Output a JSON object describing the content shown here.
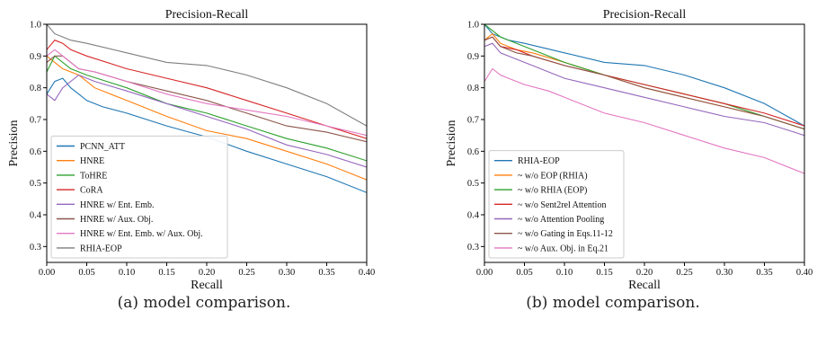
{
  "captions": {
    "a": "(a) model comparison.",
    "b": "(b) model comparison."
  },
  "chart_data": [
    {
      "type": "line",
      "title": "Precision-Recall",
      "xlabel": "Recall",
      "ylabel": "Precision",
      "xlim": [
        0.0,
        0.4
      ],
      "ylim": [
        0.25,
        1.0
      ],
      "xticks": [
        "0.00",
        "0.05",
        "0.10",
        "0.15",
        "0.20",
        "0.25",
        "0.30",
        "0.35",
        "0.40"
      ],
      "yticks": [
        "0.3",
        "0.4",
        "0.5",
        "0.6",
        "0.7",
        "0.8",
        "0.9",
        "1.0"
      ],
      "legend_position": "bottom-left",
      "series": [
        {
          "name": "PCNN_ATT",
          "color": "#1f77b4",
          "x": [
            0.0,
            0.01,
            0.02,
            0.03,
            0.04,
            0.05,
            0.07,
            0.1,
            0.15,
            0.2,
            0.25,
            0.3,
            0.35,
            0.4
          ],
          "y": [
            0.78,
            0.82,
            0.83,
            0.8,
            0.78,
            0.76,
            0.74,
            0.72,
            0.68,
            0.645,
            0.6,
            0.56,
            0.52,
            0.47
          ]
        },
        {
          "name": "HNRE",
          "color": "#ff7f0e",
          "x": [
            0.0,
            0.01,
            0.02,
            0.04,
            0.06,
            0.1,
            0.15,
            0.2,
            0.25,
            0.3,
            0.35,
            0.4
          ],
          "y": [
            0.9,
            0.88,
            0.86,
            0.84,
            0.8,
            0.76,
            0.71,
            0.665,
            0.64,
            0.6,
            0.56,
            0.51
          ]
        },
        {
          "name": "ToHRE",
          "color": "#2ca02c",
          "x": [
            0.0,
            0.01,
            0.02,
            0.03,
            0.05,
            0.1,
            0.15,
            0.2,
            0.25,
            0.3,
            0.35,
            0.4
          ],
          "y": [
            0.85,
            0.9,
            0.88,
            0.86,
            0.84,
            0.8,
            0.75,
            0.72,
            0.68,
            0.64,
            0.61,
            0.57
          ]
        },
        {
          "name": "CoRA",
          "color": "#d62728",
          "x": [
            0.0,
            0.01,
            0.02,
            0.03,
            0.05,
            0.1,
            0.15,
            0.2,
            0.25,
            0.3,
            0.35,
            0.4
          ],
          "y": [
            0.92,
            0.95,
            0.94,
            0.92,
            0.9,
            0.86,
            0.83,
            0.8,
            0.76,
            0.72,
            0.68,
            0.64
          ]
        },
        {
          "name": "HNRE w/ Ent. Emb.",
          "color": "#9467bd",
          "x": [
            0.0,
            0.01,
            0.02,
            0.04,
            0.06,
            0.1,
            0.15,
            0.2,
            0.25,
            0.3,
            0.35,
            0.4
          ],
          "y": [
            0.78,
            0.76,
            0.8,
            0.84,
            0.82,
            0.79,
            0.75,
            0.71,
            0.67,
            0.62,
            0.59,
            0.55
          ]
        },
        {
          "name": "HNRE w/ Aux. Obj.",
          "color": "#8c564b",
          "x": [
            0.0,
            0.01,
            0.02,
            0.04,
            0.06,
            0.1,
            0.15,
            0.2,
            0.25,
            0.3,
            0.35,
            0.4
          ],
          "y": [
            0.88,
            0.9,
            0.9,
            0.86,
            0.85,
            0.82,
            0.79,
            0.76,
            0.72,
            0.68,
            0.66,
            0.63
          ]
        },
        {
          "name": "HNRE w/ Ent. Emb. w/ Aux. Obj.",
          "color": "#e377c2",
          "x": [
            0.0,
            0.01,
            0.02,
            0.04,
            0.06,
            0.1,
            0.15,
            0.2,
            0.25,
            0.3,
            0.35,
            0.4
          ],
          "y": [
            0.9,
            0.92,
            0.9,
            0.86,
            0.85,
            0.82,
            0.78,
            0.75,
            0.73,
            0.71,
            0.68,
            0.65
          ]
        },
        {
          "name": "RHIA-EOP",
          "color": "#7f7f7f",
          "x": [
            0.0,
            0.01,
            0.02,
            0.03,
            0.05,
            0.1,
            0.15,
            0.2,
            0.25,
            0.3,
            0.35,
            0.4
          ],
          "y": [
            1.0,
            0.97,
            0.96,
            0.95,
            0.94,
            0.91,
            0.88,
            0.87,
            0.84,
            0.8,
            0.75,
            0.68
          ]
        }
      ]
    },
    {
      "type": "line",
      "title": "Precision-Recall",
      "xlabel": "Recall",
      "ylabel": "Precision",
      "xlim": [
        0.0,
        0.4
      ],
      "ylim": [
        0.25,
        1.0
      ],
      "xticks": [
        "0.00",
        "0.05",
        "0.10",
        "0.15",
        "0.20",
        "0.25",
        "0.30",
        "0.35",
        "0.40"
      ],
      "yticks": [
        "0.3",
        "0.4",
        "0.5",
        "0.6",
        "0.7",
        "0.8",
        "0.9",
        "1.0"
      ],
      "legend_position": "bottom-left",
      "series": [
        {
          "name": "RHIA-EOP",
          "color": "#1f77b4",
          "x": [
            0.0,
            0.01,
            0.02,
            0.03,
            0.05,
            0.1,
            0.15,
            0.2,
            0.25,
            0.3,
            0.35,
            0.4
          ],
          "y": [
            1.0,
            0.97,
            0.96,
            0.95,
            0.94,
            0.91,
            0.88,
            0.87,
            0.84,
            0.8,
            0.75,
            0.68
          ]
        },
        {
          "name": "~ w/o EOP (RHIA)",
          "color": "#ff7f0e",
          "x": [
            0.0,
            0.01,
            0.02,
            0.04,
            0.06,
            0.1,
            0.15,
            0.2,
            0.25,
            0.3,
            0.35,
            0.4
          ],
          "y": [
            0.95,
            0.97,
            0.94,
            0.92,
            0.91,
            0.88,
            0.84,
            0.8,
            0.77,
            0.74,
            0.71,
            0.67
          ]
        },
        {
          "name": "~ w/o RHIA (EOP)",
          "color": "#2ca02c",
          "x": [
            0.0,
            0.01,
            0.02,
            0.04,
            0.06,
            0.1,
            0.15,
            0.2,
            0.25,
            0.3,
            0.35,
            0.4
          ],
          "y": [
            1.0,
            0.98,
            0.96,
            0.94,
            0.92,
            0.88,
            0.84,
            0.81,
            0.78,
            0.75,
            0.71,
            0.67
          ]
        },
        {
          "name": "~ w/o Sent2rel Attention",
          "color": "#d62728",
          "x": [
            0.0,
            0.01,
            0.02,
            0.04,
            0.06,
            0.1,
            0.15,
            0.2,
            0.25,
            0.3,
            0.35,
            0.4
          ],
          "y": [
            0.95,
            0.96,
            0.93,
            0.92,
            0.9,
            0.87,
            0.84,
            0.81,
            0.78,
            0.75,
            0.72,
            0.68
          ]
        },
        {
          "name": "~ w/o Attention Pooling",
          "color": "#9467bd",
          "x": [
            0.0,
            0.01,
            0.02,
            0.04,
            0.06,
            0.1,
            0.15,
            0.2,
            0.25,
            0.3,
            0.35,
            0.4
          ],
          "y": [
            0.93,
            0.94,
            0.91,
            0.89,
            0.87,
            0.83,
            0.8,
            0.77,
            0.74,
            0.71,
            0.69,
            0.65
          ]
        },
        {
          "name": "~ w/o Gating in Eqs.11-12",
          "color": "#8c564b",
          "x": [
            0.0,
            0.01,
            0.02,
            0.04,
            0.06,
            0.1,
            0.15,
            0.2,
            0.25,
            0.3,
            0.35,
            0.4
          ],
          "y": [
            0.95,
            0.96,
            0.93,
            0.91,
            0.9,
            0.87,
            0.84,
            0.8,
            0.77,
            0.74,
            0.71,
            0.67
          ]
        },
        {
          "name": "~ w/o Aux. Obj. in Eq.21",
          "color": "#e377c2",
          "x": [
            0.0,
            0.01,
            0.02,
            0.03,
            0.05,
            0.08,
            0.1,
            0.15,
            0.2,
            0.25,
            0.3,
            0.35,
            0.4
          ],
          "y": [
            0.82,
            0.86,
            0.84,
            0.83,
            0.81,
            0.79,
            0.77,
            0.72,
            0.69,
            0.65,
            0.61,
            0.58,
            0.53
          ]
        }
      ]
    }
  ]
}
